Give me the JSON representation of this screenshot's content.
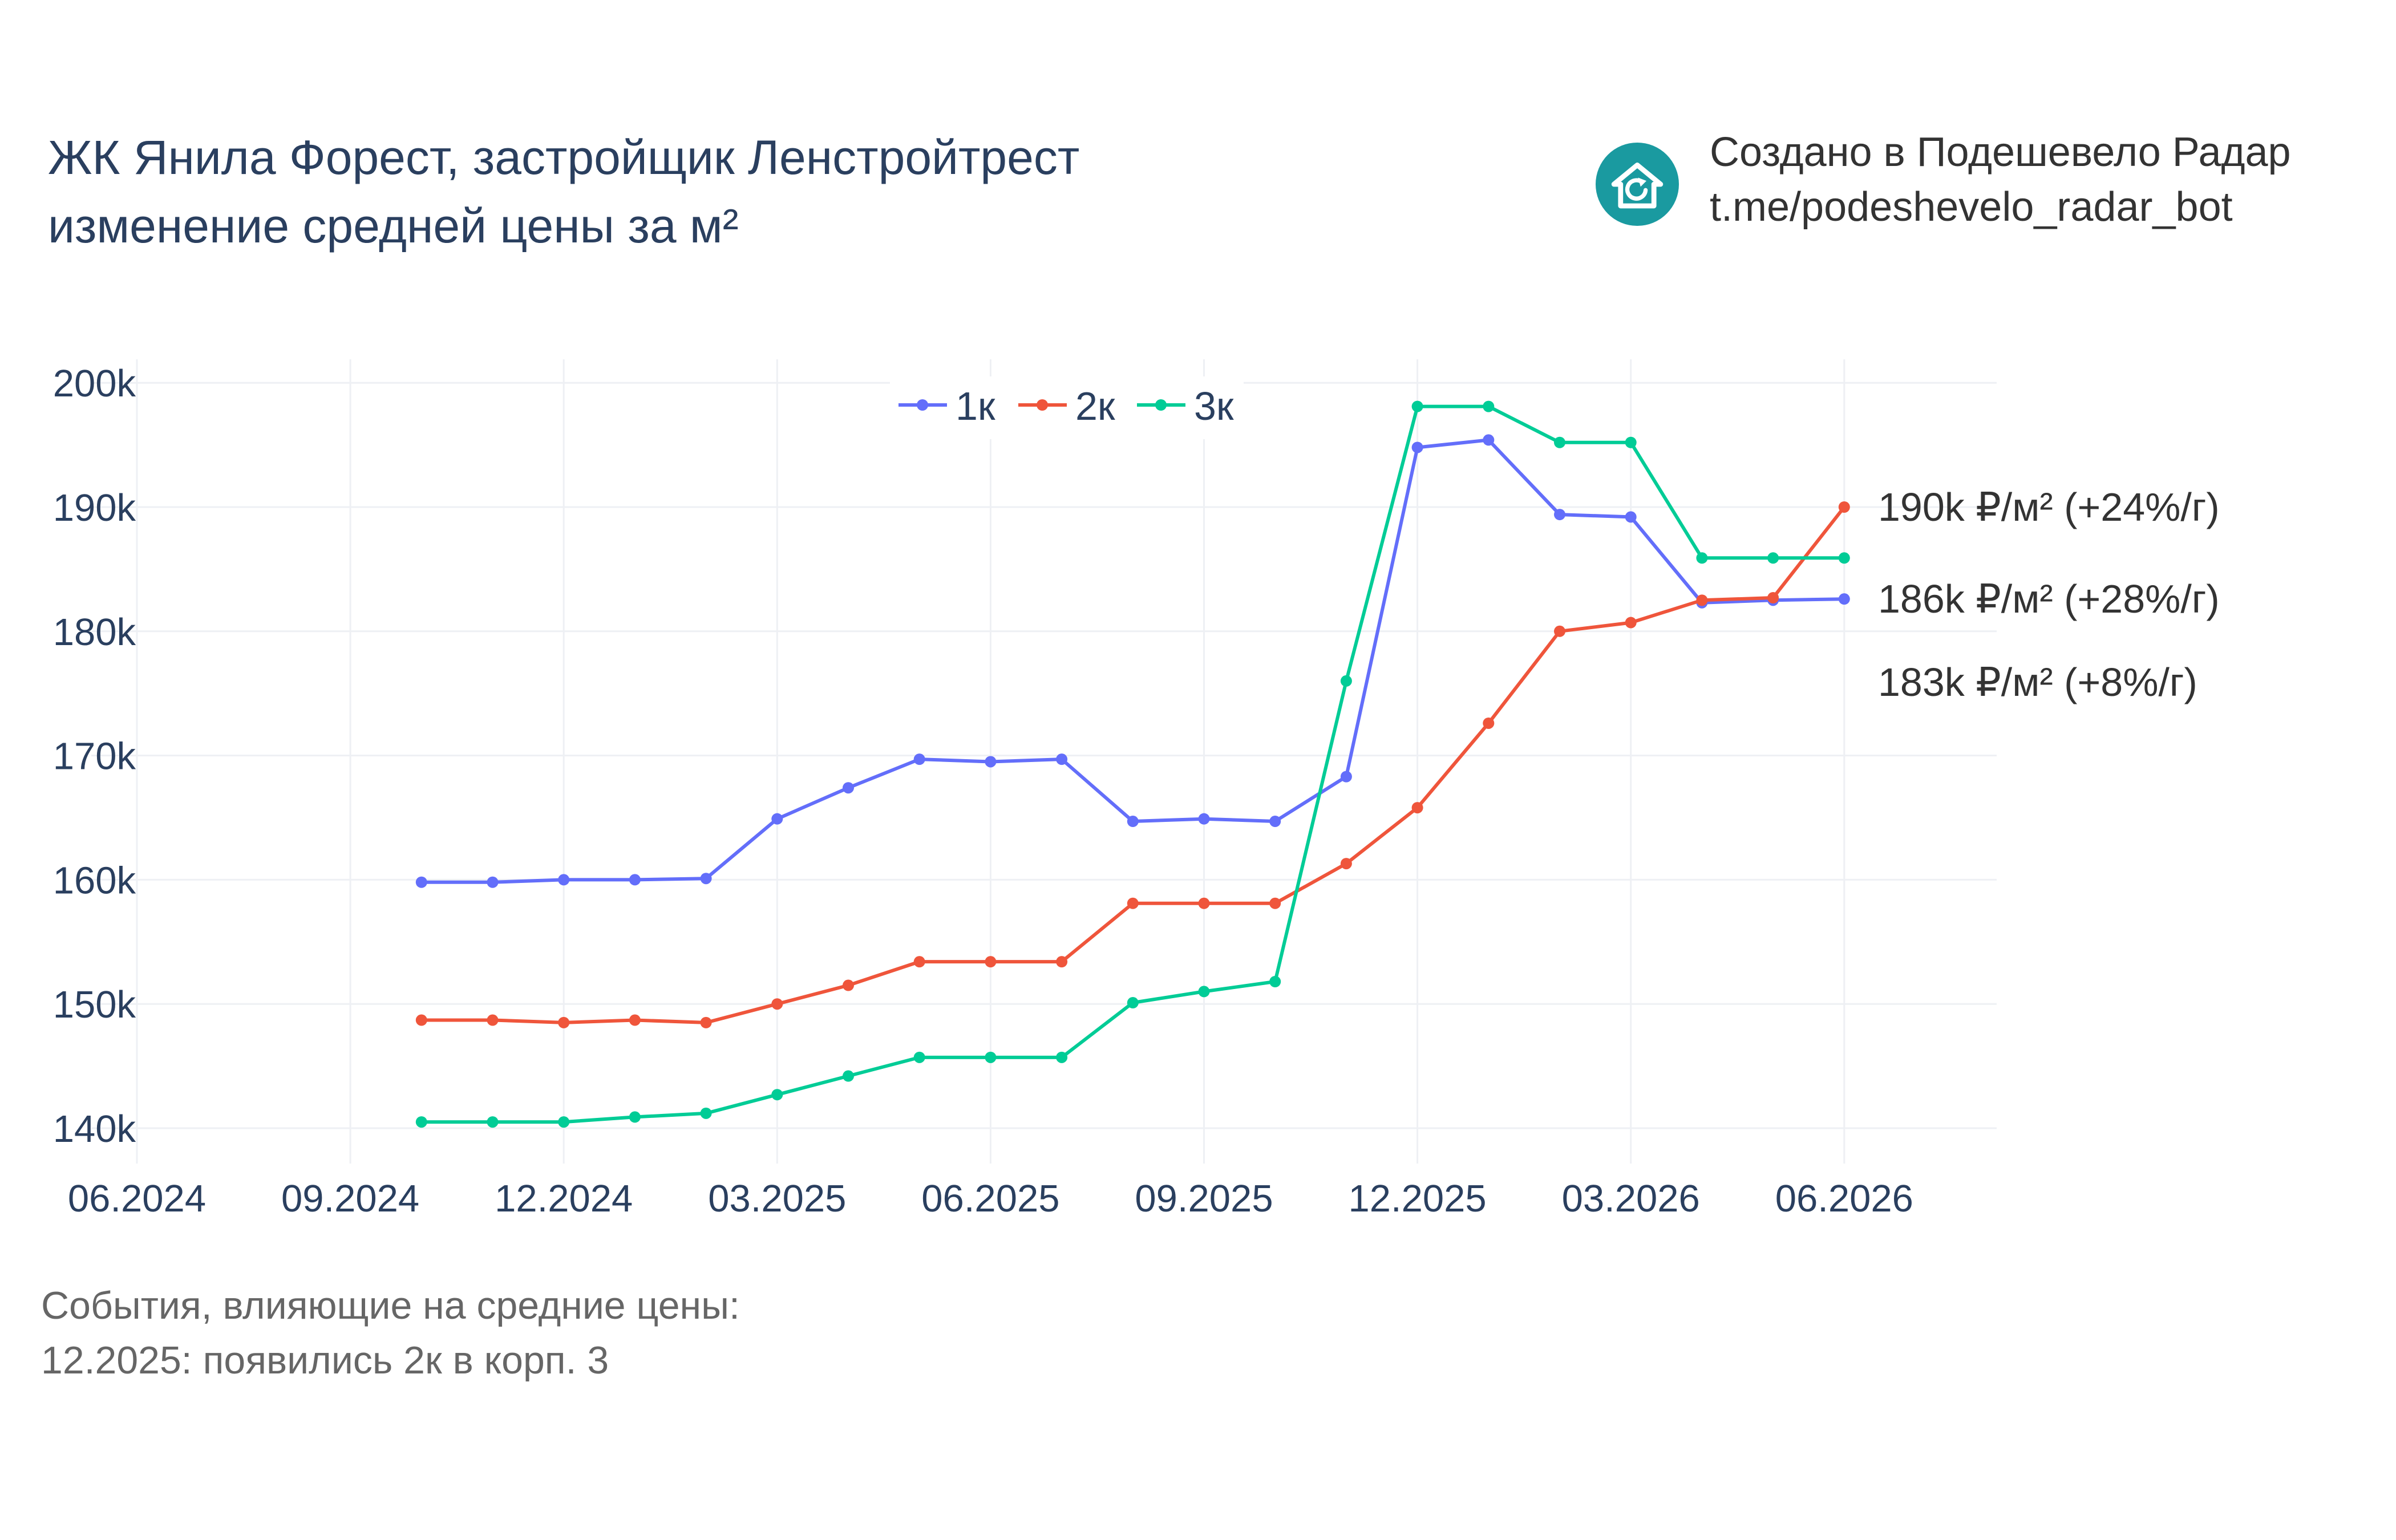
{
  "header": {
    "title_line1": "ЖК Янила Форест, застройщик Ленстройтрест",
    "title_line2": "изменение средней цены за м²"
  },
  "credit": {
    "line1": "Создано в Подешевело Радар",
    "line2": "t.me/podeshevelo_radar_bot",
    "logo_icon": "house-refresh-icon",
    "logo_color": "#1a9aa0"
  },
  "footer": {
    "line1": "События, влияющие на средние цены:",
    "line2": "12.2025: появились 2к в корп. 3"
  },
  "chart_data": {
    "type": "line",
    "x_ticks": [
      "06.2024",
      "09.2024",
      "12.2024",
      "03.2025",
      "06.2025",
      "09.2025",
      "12.2025",
      "03.2026",
      "06.2026"
    ],
    "x": [
      "10.2024",
      "11.2024",
      "12.2024",
      "01.2025",
      "02.2025",
      "03.2025",
      "04.2025",
      "05.2025",
      "06.2025",
      "07.2025",
      "08.2025",
      "09.2025",
      "10.2025",
      "11.2025",
      "12.2025",
      "01.2026",
      "02.2026",
      "03.2026",
      "04.2026",
      "05.2026",
      "06.2026"
    ],
    "y_ticks": [
      "140k",
      "150k",
      "160k",
      "170k",
      "180k",
      "190k",
      "200k"
    ],
    "ylim": [
      137000,
      202000
    ],
    "grid": true,
    "legend_position": "top-center",
    "series": [
      {
        "name": "1к",
        "color": "#636efa",
        "values": [
          159800,
          159800,
          160000,
          160000,
          160100,
          164900,
          167400,
          169700,
          169500,
          169700,
          164700,
          164900,
          164700,
          168300,
          194800,
          195400,
          189400,
          189200,
          182300,
          182500,
          182600
        ]
      },
      {
        "name": "2к",
        "color": "#ef553b",
        "values": [
          148700,
          148700,
          148500,
          148700,
          148500,
          150000,
          151500,
          153400,
          153400,
          153400,
          158100,
          158100,
          158100,
          161300,
          165800,
          172600,
          180000,
          180700,
          182500,
          182700,
          190000
        ]
      },
      {
        "name": "3к",
        "color": "#00cc96",
        "values": [
          140500,
          140500,
          140500,
          140900,
          141200,
          142700,
          144200,
          145700,
          145700,
          145700,
          150100,
          151000,
          151800,
          176000,
          198100,
          198100,
          195200,
          195200,
          185900,
          185900,
          185900
        ]
      }
    ],
    "annotations": [
      {
        "text": "190k ₽/м² (+24%/г)",
        "value": 190000
      },
      {
        "text": "186k ₽/м² (+28%/г)",
        "value": 182600
      },
      {
        "text": "183k ₽/м² (+8%/г)",
        "value": 175900
      }
    ]
  }
}
